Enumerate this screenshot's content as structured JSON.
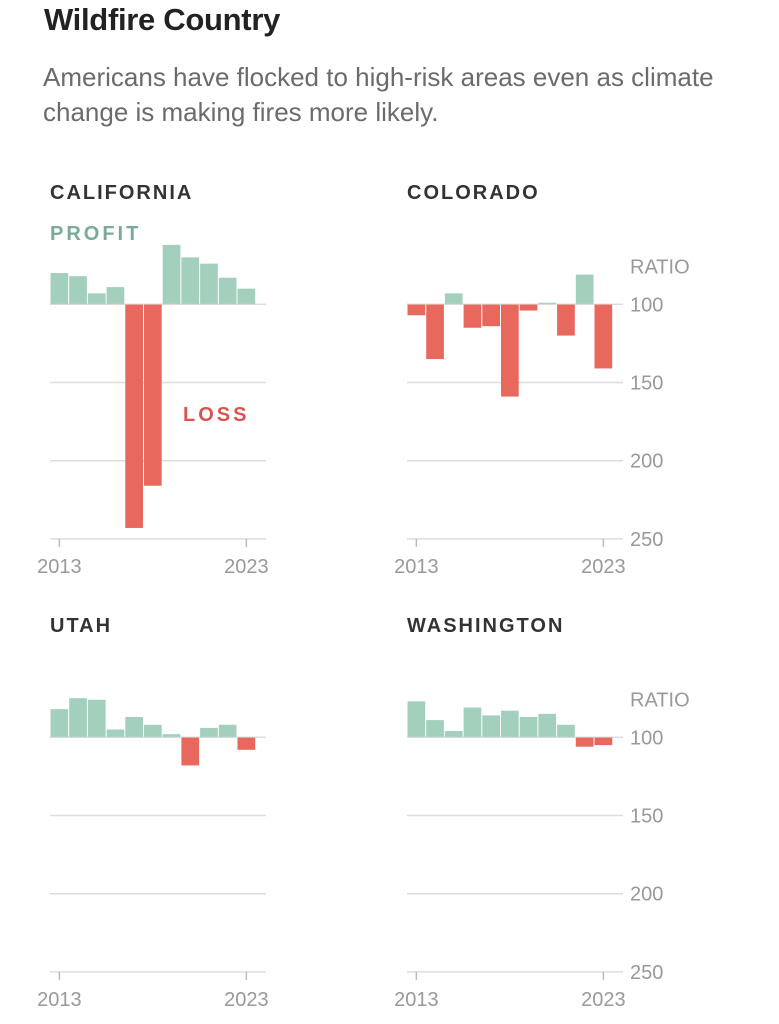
{
  "header": {
    "title": "Wildfire Country",
    "subtitle": "Americans have flocked to high-risk areas even as climate change is making fires more likely."
  },
  "colors": {
    "profit": "#a3cfbd",
    "loss": "#e8685e",
    "profit_label": "#7aab9a",
    "loss_label": "#d9534f",
    "grid": "#dddddd",
    "tick_text": "#999999"
  },
  "chart_data": [
    {
      "type": "bar",
      "title": "CALIFORNIA",
      "annotations": [
        "PROFIT",
        "LOSS"
      ],
      "x": [
        2013,
        2014,
        2015,
        2016,
        2017,
        2018,
        2019,
        2020,
        2021,
        2022,
        2023
      ],
      "values": [
        80,
        82,
        93,
        89,
        243,
        216,
        62,
        70,
        74,
        83,
        90
      ],
      "baseline": 100,
      "ylabel": "RATIO",
      "y_ticks": [
        100,
        150,
        200,
        250
      ],
      "x_tick_labels": [
        "2013",
        "2023"
      ],
      "ylim": [
        60,
        250
      ],
      "show_y_labels": false,
      "grid": true
    },
    {
      "type": "bar",
      "title": "COLORADO",
      "x": [
        2013,
        2014,
        2015,
        2016,
        2017,
        2018,
        2019,
        2020,
        2021,
        2022,
        2023
      ],
      "values": [
        107,
        135,
        93,
        115,
        114,
        159,
        104,
        99,
        120,
        81,
        141
      ],
      "baseline": 100,
      "ylabel": "RATIO",
      "y_ticks": [
        100,
        150,
        200,
        250
      ],
      "x_tick_labels": [
        "2013",
        "2023"
      ],
      "ylim": [
        60,
        250
      ],
      "show_y_labels": true,
      "grid": true
    },
    {
      "type": "bar",
      "title": "UTAH",
      "x": [
        2013,
        2014,
        2015,
        2016,
        2017,
        2018,
        2019,
        2020,
        2021,
        2022,
        2023
      ],
      "values": [
        82,
        75,
        76,
        95,
        87,
        92,
        98,
        118,
        94,
        92,
        108
      ],
      "baseline": 100,
      "ylabel": "RATIO",
      "y_ticks": [
        100,
        150,
        200,
        250
      ],
      "x_tick_labels": [
        "2013",
        "2023"
      ],
      "ylim": [
        60,
        250
      ],
      "show_y_labels": false,
      "grid": true
    },
    {
      "type": "bar",
      "title": "WASHINGTON",
      "x": [
        2013,
        2014,
        2015,
        2016,
        2017,
        2018,
        2019,
        2020,
        2021,
        2022,
        2023
      ],
      "values": [
        77,
        89,
        96,
        81,
        86,
        83,
        87,
        85,
        92,
        106,
        105
      ],
      "baseline": 100,
      "ylabel": "RATIO",
      "y_ticks": [
        100,
        150,
        200,
        250
      ],
      "x_tick_labels": [
        "2013",
        "2023"
      ],
      "ylim": [
        60,
        250
      ],
      "show_y_labels": true,
      "grid": true
    }
  ]
}
